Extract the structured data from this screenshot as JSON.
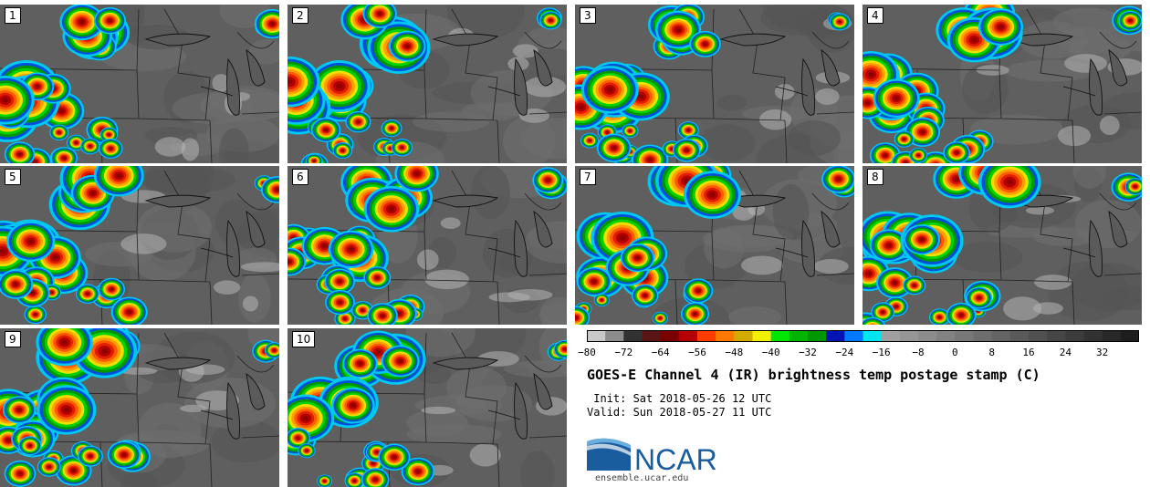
{
  "stamps": [
    {
      "label": "1",
      "seed": 11,
      "variant": 0
    },
    {
      "label": "2",
      "seed": 23,
      "variant": 1
    },
    {
      "label": "3",
      "seed": 37,
      "variant": 2
    },
    {
      "label": "4",
      "seed": 41,
      "variant": 3
    },
    {
      "label": "5",
      "seed": 53,
      "variant": 0
    },
    {
      "label": "6",
      "seed": 67,
      "variant": 1
    },
    {
      "label": "7",
      "seed": 71,
      "variant": 2
    },
    {
      "label": "8",
      "seed": 83,
      "variant": 3
    },
    {
      "label": "9",
      "seed": 97,
      "variant": 0
    },
    {
      "label": "10",
      "seed": 101,
      "variant": 1
    }
  ],
  "colorbar": {
    "tick_labels": [
      "−80",
      "−72",
      "−64",
      "−56",
      "−48",
      "−40",
      "−32",
      "−24",
      "−16",
      "−8",
      "0",
      "8",
      "16",
      "24",
      "32"
    ],
    "colors": [
      "#c8c8c8",
      "#8c8c8c",
      "#323232",
      "#5a1414",
      "#7a0000",
      "#b40000",
      "#ff3c00",
      "#ff7800",
      "#d2aa00",
      "#f0f000",
      "#00e600",
      "#00b400",
      "#009600",
      "#0014b4",
      "#0078ff",
      "#00e6f0",
      "#a0a0a0",
      "#969696",
      "#8c8c8c",
      "#828282",
      "#787878",
      "#6e6e6e",
      "#646464",
      "#5a5a5a",
      "#505050",
      "#464646",
      "#3c3c3c",
      "#323232",
      "#282828",
      "#1e1e1e"
    ]
  },
  "title": "GOES-E Channel 4 (IR) brightness temp postage stamp (C)",
  "init_line": " Init: Sat 2018-05-26 12 UTC",
  "valid_line": "Valid: Sun 2018-05-27 11 UTC",
  "logo": {
    "text": "NCAR",
    "url": "ensemble.ucar.edu",
    "brand_color": "#1a5d9e"
  }
}
